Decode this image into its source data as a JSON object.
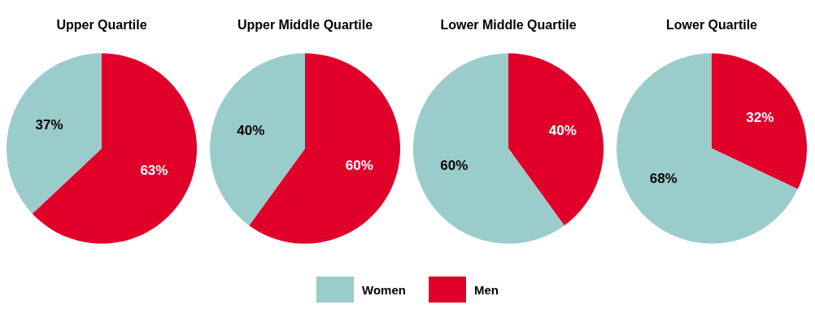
{
  "chart_data": [
    {
      "type": "pie",
      "title": "Upper Quartile",
      "categories": [
        "Men",
        "Women"
      ],
      "values": [
        63,
        37
      ],
      "colors": [
        "#e0002a",
        "#9bcccc"
      ],
      "value_labels": [
        "63%",
        "37%"
      ],
      "legend": "bottom"
    },
    {
      "type": "pie",
      "title": "Upper Middle Quartile",
      "categories": [
        null,
        null
      ],
      "values": [
        60,
        40
      ],
      "colors": [
        "#e0002a",
        "#9bcccc"
      ],
      "value_labels": [
        "60%",
        "40%"
      ]
    },
    {
      "type": "pie",
      "title": "Lower Middle Quartile",
      "categories": [
        null,
        null
      ],
      "values": [
        40,
        60
      ],
      "colors": [
        "#e0002a",
        "#9bcccc"
      ],
      "value_labels": [
        "40%",
        "60%"
      ]
    },
    {
      "type": "pie",
      "title": "Lower Quartile",
      "categories": [
        null,
        null
      ],
      "values": [
        32,
        68
      ],
      "colors": [
        "#e0002a",
        "#9bcccc"
      ],
      "value_labels": [
        "32%",
        "68%"
      ]
    }
  ]
}
